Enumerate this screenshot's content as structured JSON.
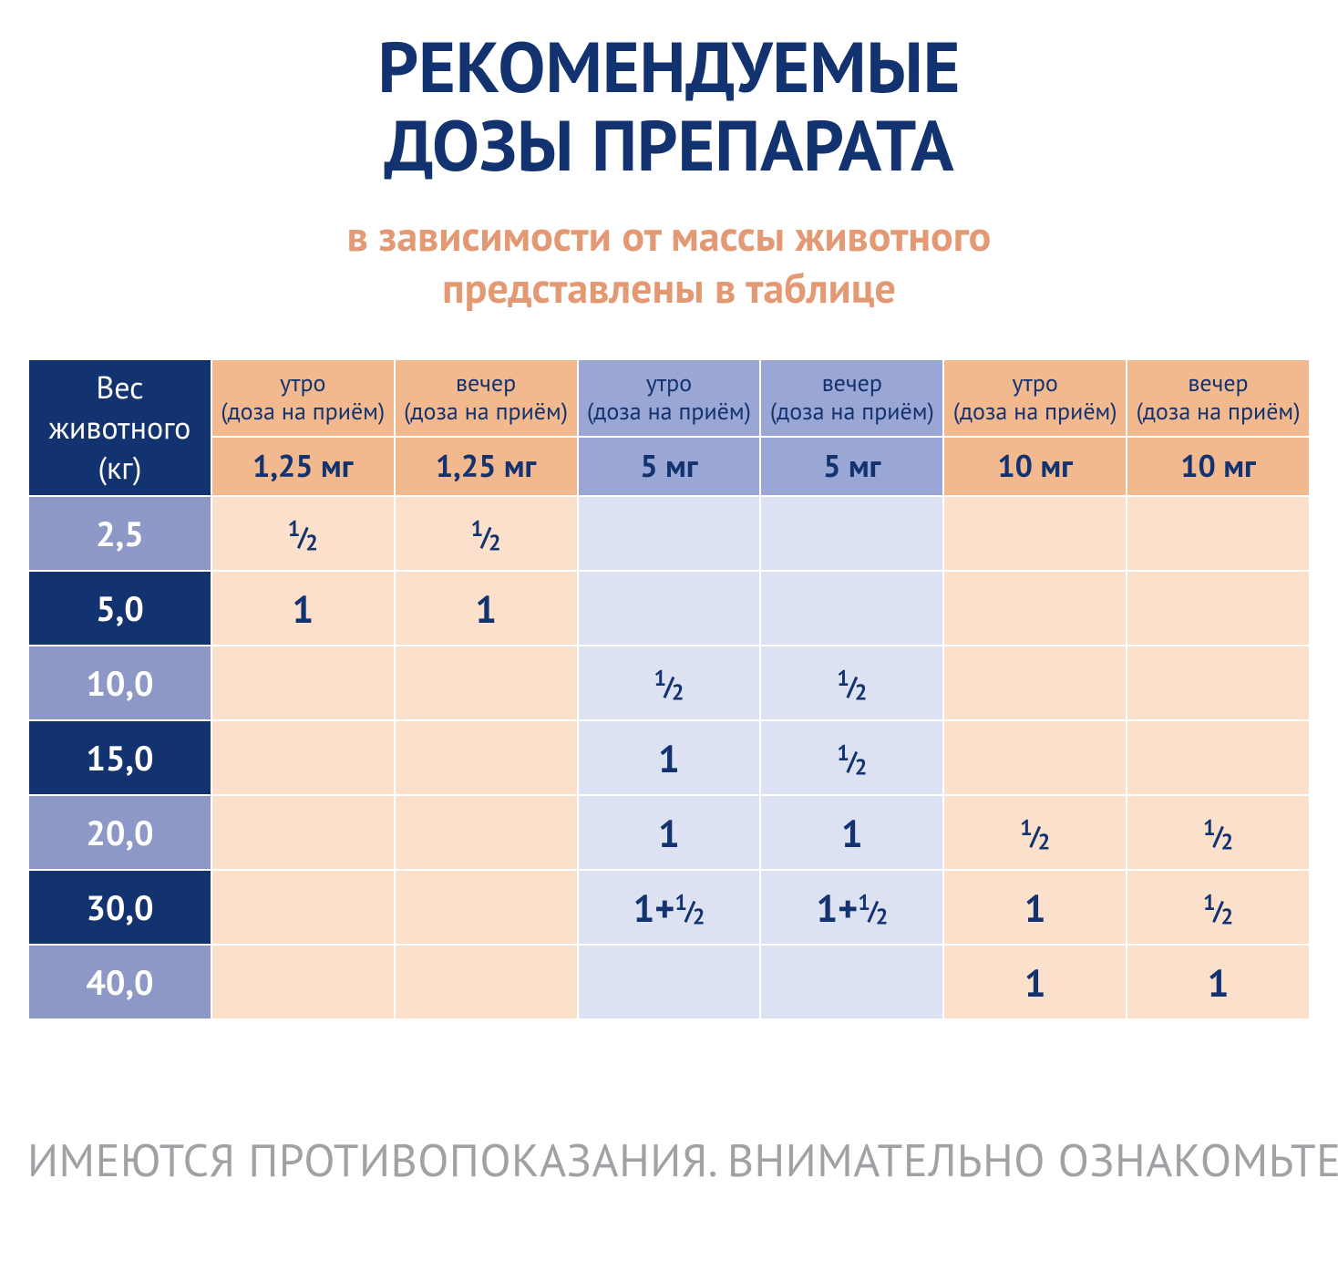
{
  "colors": {
    "title": "#12336f",
    "subtitle": "#e39973",
    "navy_dark": "#12336f",
    "navy_light": "#8e98c7",
    "orange_mid": "#f3b98e",
    "orange_light": "#fbe0cc",
    "blue_mid": "#9aa6d4",
    "blue_light": "#dde2f3",
    "value_text": "#12336f",
    "disclaimer": "#9fa1a4",
    "white": "#ffffff"
  },
  "typography": {
    "title_size": 78,
    "subtitle_size": 46,
    "disclaimer_size": 50
  },
  "title_line1": "РЕКОМЕНДУЕМЫЕ",
  "title_line2": "ДОЗЫ ПРЕПАРАТА",
  "subtitle_line1": "в зависимости от массы животного",
  "subtitle_line2": "представлены в таблице",
  "disclaimer": "ИМЕЮТСЯ ПРОТИВОПОКАЗАНИЯ.  ВНИМАТЕЛЬНО ОЗНАКОМЬТЕСЬ С ИНСТРУКЦИЕЙ",
  "table": {
    "weight_header": "Вес\nживотного\n(кг)",
    "time_morning": "утро\n(доза на приём)",
    "time_evening": "вечер\n(доза на приём)",
    "dose_groups": [
      {
        "dose": "1,25 мг",
        "header_bg": "#f3b98e",
        "empty_bg": "#fbe0cc",
        "filled_bg": "#fbe0cc"
      },
      {
        "dose": "5 мг",
        "header_bg": "#9aa6d4",
        "empty_bg": "#dde2f3",
        "filled_bg": "#dde2f3"
      },
      {
        "dose": "10 мг",
        "header_bg": "#f3b98e",
        "empty_bg": "#fbe0cc",
        "filled_bg": "#fbe0cc"
      }
    ],
    "rows": [
      {
        "weight": "2,5",
        "label_bg": "#8e98c7",
        "cells": [
          "½",
          "½",
          "",
          "",
          "",
          ""
        ]
      },
      {
        "weight": "5,0",
        "label_bg": "#12336f",
        "cells": [
          "1",
          "1",
          "",
          "",
          "",
          ""
        ]
      },
      {
        "weight": "10,0",
        "label_bg": "#8e98c7",
        "cells": [
          "",
          "",
          "½",
          "½",
          "",
          ""
        ]
      },
      {
        "weight": "15,0",
        "label_bg": "#12336f",
        "cells": [
          "",
          "",
          "1",
          "½",
          "",
          ""
        ]
      },
      {
        "weight": "20,0",
        "label_bg": "#8e98c7",
        "cells": [
          "",
          "",
          "1",
          "1",
          "½",
          "½"
        ]
      },
      {
        "weight": "30,0",
        "label_bg": "#12336f",
        "cells": [
          "",
          "",
          "1+½",
          "1+½",
          "1",
          "½"
        ]
      },
      {
        "weight": "40,0",
        "label_bg": "#8e98c7",
        "cells": [
          "",
          "",
          "",
          "",
          "1",
          "1"
        ]
      }
    ]
  }
}
